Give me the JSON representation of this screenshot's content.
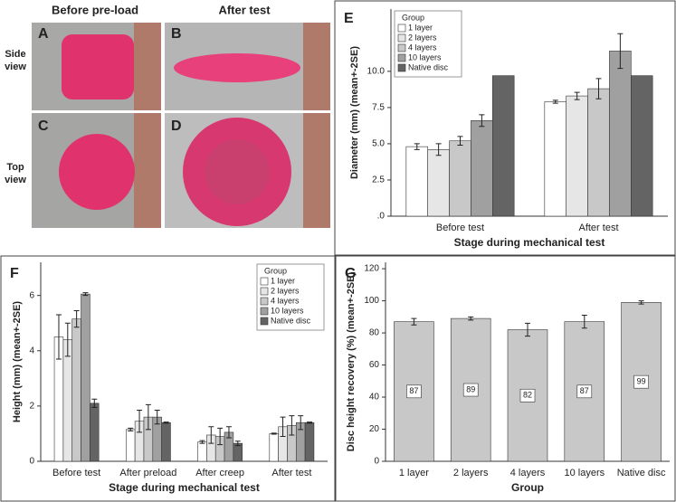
{
  "photo_panel": {
    "column_titles": [
      "Before pre-load",
      "After test"
    ],
    "row_labels": [
      [
        "Side",
        "view"
      ],
      [
        "Top",
        "view"
      ]
    ],
    "panel_labels": [
      "A",
      "B",
      "C",
      "D"
    ]
  },
  "chart_data": [
    {
      "type": "bar",
      "panel_label": "E",
      "x_label": "Stage during mechanical test",
      "y_label": "Diameter (mm) (mean+-2SE)",
      "categories": [
        "Before test",
        "After test"
      ],
      "series": [
        {
          "name": "1 layer",
          "color": "#ffffff",
          "values": [
            4.8,
            7.9
          ],
          "errors": [
            0.2,
            0.1
          ]
        },
        {
          "name": "2 layers",
          "color": "#e6e6e6",
          "values": [
            4.6,
            8.3
          ],
          "errors": [
            0.4,
            0.25
          ]
        },
        {
          "name": "4 layers",
          "color": "#c8c8c8",
          "values": [
            5.2,
            8.8
          ],
          "errors": [
            0.3,
            0.7
          ]
        },
        {
          "name": "10 layers",
          "color": "#a0a0a0",
          "values": [
            6.6,
            11.4
          ],
          "errors": [
            0.4,
            1.2
          ]
        },
        {
          "name": "Native disc",
          "color": "#646464",
          "values": [
            9.7,
            9.7
          ],
          "errors": [
            null,
            null
          ]
        }
      ],
      "ylim": [
        0,
        14.3
      ],
      "yticks": [
        {
          "value": 0,
          "label": ".0"
        },
        2.5,
        {
          "value": 5,
          "label": "5.0"
        },
        7.5,
        {
          "value": 10,
          "label": "10.0"
        }
      ],
      "legend": "upper left",
      "legend_title": "Group"
    },
    {
      "type": "bar",
      "panel_label": "F",
      "x_label": "Stage during mechanical test",
      "y_label": "Height (mm) (mean+-2SE)",
      "categories": [
        "Before test",
        "After preload",
        "After creep",
        "After test"
      ],
      "series": [
        {
          "name": "1 layer",
          "color": "#ffffff",
          "values": [
            4.5,
            1.15,
            0.7,
            1.0
          ],
          "errors": [
            0.8,
            0.05,
            0.05,
            0.02
          ]
        },
        {
          "name": "2 layers",
          "color": "#e6e6e6",
          "values": [
            4.4,
            1.45,
            0.95,
            1.25
          ],
          "errors": [
            0.6,
            0.4,
            0.3,
            0.35
          ]
        },
        {
          "name": "4 layers",
          "color": "#c8c8c8",
          "values": [
            5.15,
            1.6,
            0.9,
            1.3
          ],
          "errors": [
            0.3,
            0.45,
            0.3,
            0.35
          ]
        },
        {
          "name": "10 layers",
          "color": "#a0a0a0",
          "values": [
            6.05,
            1.6,
            1.05,
            1.4
          ],
          "errors": [
            0.05,
            0.25,
            0.2,
            0.25
          ]
        },
        {
          "name": "Native disc",
          "color": "#646464",
          "values": [
            2.1,
            1.4,
            0.65,
            1.4
          ],
          "errors": [
            0.15,
            0.02,
            0.08,
            0.02
          ]
        }
      ],
      "ylim": [
        0,
        7.2
      ],
      "yticks": [
        0,
        2,
        4,
        6
      ],
      "legend": "upper right",
      "legend_title": "Group"
    },
    {
      "type": "bar",
      "panel_label": "G",
      "x_label": "Group",
      "y_label": "Disc height recovery (%) (mean+-2SE)",
      "categories": [
        "1 layer",
        "2 layers",
        "4 layers",
        "10 layers",
        "Native disc"
      ],
      "values": [
        87,
        89,
        82,
        87,
        99
      ],
      "errors": [
        2,
        1,
        4,
        4,
        1
      ],
      "color": "#c8c8c8",
      "ylim": [
        0,
        124
      ],
      "yticks": [
        0,
        20,
        40,
        60,
        80,
        100,
        120
      ],
      "data_labels": true
    }
  ]
}
